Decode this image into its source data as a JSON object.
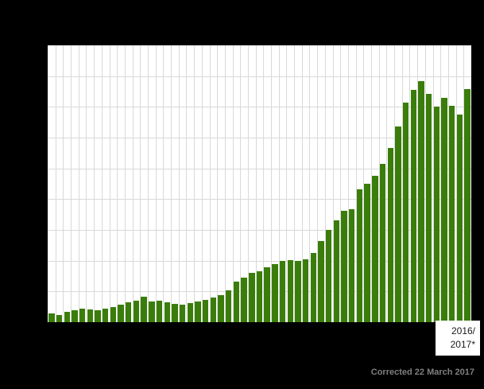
{
  "colors": {
    "background": "#000000",
    "plot_background": "#ffffff",
    "gridline": "#d9d9d9",
    "bar": "#3a7d0b",
    "callout_background": "#ffffff",
    "callout_text": "#1a1a1a",
    "footer_text": "#7f7f7f"
  },
  "callout": {
    "line1": "2016/",
    "line2": "2017*"
  },
  "footer": {
    "text": "Corrected 22 March 2017"
  },
  "chart_data": {
    "type": "bar",
    "title": "",
    "xlabel": "",
    "ylabel": "",
    "bar_count": 55,
    "x": [
      1,
      2,
      3,
      4,
      5,
      6,
      7,
      8,
      9,
      10,
      11,
      12,
      13,
      14,
      15,
      16,
      17,
      18,
      19,
      20,
      21,
      22,
      23,
      24,
      25,
      26,
      27,
      28,
      29,
      30,
      31,
      32,
      33,
      34,
      35,
      36,
      37,
      38,
      39,
      40,
      41,
      42,
      43,
      44,
      45,
      46,
      47,
      48,
      49,
      50,
      51,
      52,
      53,
      54,
      55
    ],
    "last_bar_label": "2016/2017*",
    "axis_tick_labels_visible": false,
    "values_unit": "percent_of_plot_height",
    "ylim": [
      0,
      100
    ],
    "values": [
      3.2,
      2.6,
      3.8,
      4.3,
      4.9,
      4.6,
      4.3,
      4.9,
      5.5,
      6.4,
      7.2,
      7.8,
      9.2,
      7.5,
      7.8,
      7.2,
      6.6,
      6.4,
      6.9,
      7.5,
      8.1,
      9.0,
      9.8,
      11.6,
      14.7,
      16.2,
      17.9,
      18.5,
      19.9,
      21.1,
      22.0,
      22.5,
      22.0,
      22.8,
      24.9,
      29.2,
      33.2,
      36.7,
      40.2,
      40.8,
      48.0,
      50.0,
      52.9,
      57.2,
      63.0,
      70.8,
      79.2,
      83.8,
      87.0,
      82.4,
      78.0,
      80.9,
      78.3,
      75.1,
      84.1
    ],
    "grid": {
      "horizontal_divisions": 9,
      "vertical_gridline_per_bar": true
    },
    "legend": "none",
    "annotations": [
      "2016/2017*",
      "Corrected 22 March 2017"
    ]
  }
}
